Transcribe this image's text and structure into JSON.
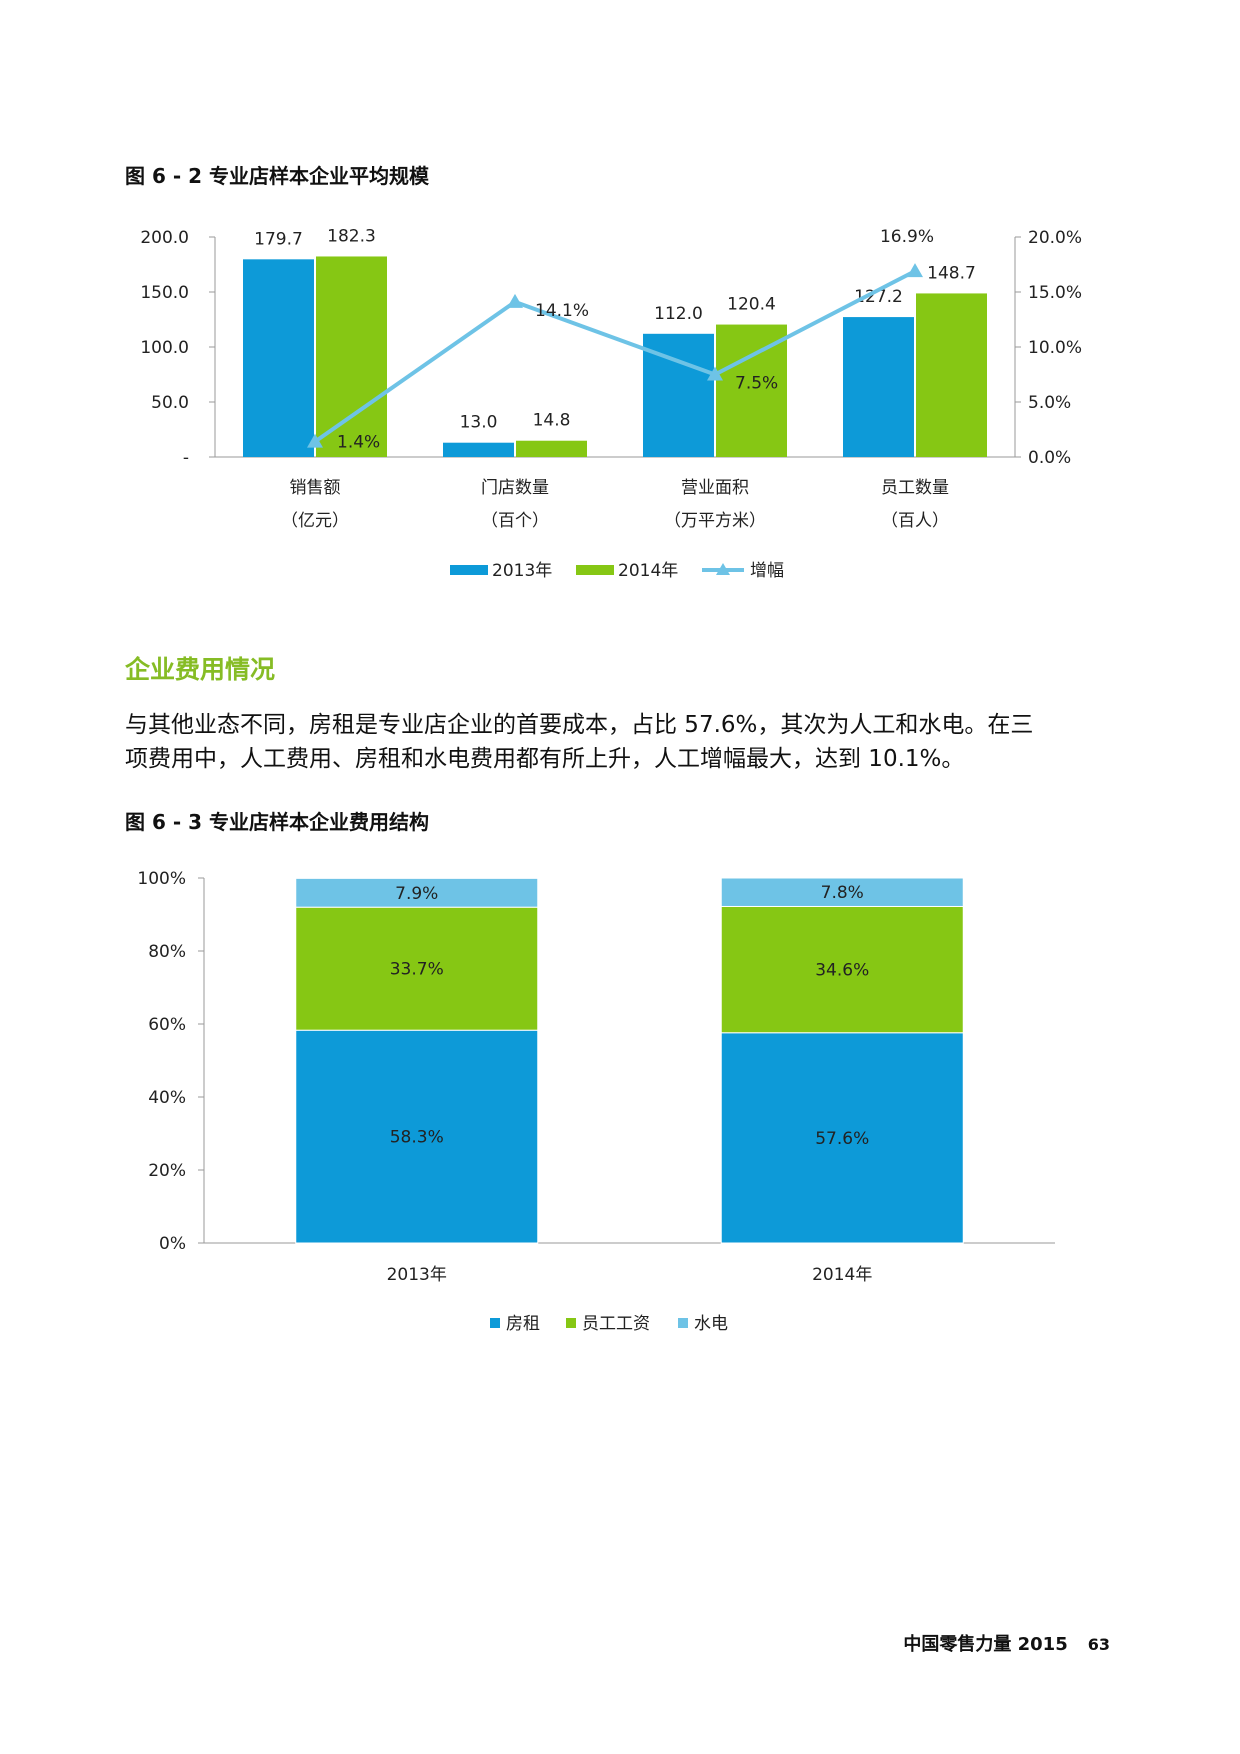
{
  "figure1": {
    "title": "图 6 - 2 专业店样本企业平均规模",
    "chart_data": {
      "type": "bar",
      "categories": [
        [
          "销售额",
          "（亿元）"
        ],
        [
          "门店数量",
          "（百个）"
        ],
        [
          "营业面积",
          "（万平方米）"
        ],
        [
          "员工数量",
          "（百人）"
        ]
      ],
      "series": [
        {
          "name": "2013年",
          "type": "bar",
          "axis": "left",
          "color": "#0d9ad8",
          "values": [
            179.7,
            13.0,
            112.0,
            127.2
          ],
          "labels": [
            "179.7",
            "13.0",
            "112.0",
            "127.2"
          ]
        },
        {
          "name": "2014年",
          "type": "bar",
          "axis": "left",
          "color": "#86c714",
          "values": [
            182.3,
            14.8,
            120.4,
            148.7
          ],
          "labels": [
            "182.3",
            "14.8",
            "120.4",
            "148.7"
          ]
        },
        {
          "name": "增幅",
          "type": "line",
          "axis": "right",
          "color": "#6ec3e6",
          "values": [
            1.4,
            14.1,
            7.5,
            16.9
          ],
          "labels": [
            "1.4%",
            "14.1%",
            "7.5%",
            "16.9%"
          ]
        }
      ],
      "y_left": {
        "ylim": [
          0,
          200
        ],
        "ticks": [
          0,
          50,
          100,
          150,
          200
        ],
        "tick_labels": [
          "-",
          "50.0",
          "100.0",
          "150.0",
          "200.0"
        ]
      },
      "y_right": {
        "ylim": [
          0,
          20
        ],
        "ticks": [
          0,
          5,
          10,
          15,
          20
        ],
        "tick_labels": [
          "0.0%",
          "5.0%",
          "10.0%",
          "15.0%",
          "20.0%"
        ]
      },
      "legend_position": "bottom",
      "grid": false
    }
  },
  "section": {
    "heading": "企业费用情况",
    "paragraph_lines": [
      "与其他业态不同，房租是专业店企业的首要成本，占比 57.6%，其次为人工和水电。在三",
      "项费用中，人工费用、房租和水电费用都有所上升，人工增幅最大，达到 10.1%。"
    ]
  },
  "figure2": {
    "title": "图 6 - 3 专业店样本企业费用结构",
    "chart_data": {
      "type": "bar",
      "stacked": true,
      "categories": [
        "2013年",
        "2014年"
      ],
      "series": [
        {
          "name": "房租",
          "color": "#0d9ad8",
          "values": [
            58.3,
            57.6
          ],
          "labels": [
            "58.3%",
            "57.6%"
          ]
        },
        {
          "name": "员工工资",
          "color": "#86c714",
          "values": [
            33.7,
            34.6
          ],
          "labels": [
            "33.7%",
            "34.6%"
          ]
        },
        {
          "name": "水电",
          "color": "#6ec3e6",
          "values": [
            7.9,
            7.8
          ],
          "labels": [
            "7.9%",
            "7.8%"
          ]
        }
      ],
      "ylim": [
        0,
        100
      ],
      "ticks": [
        0,
        20,
        40,
        60,
        80,
        100
      ],
      "tick_labels": [
        "0%",
        "20%",
        "40%",
        "60%",
        "80%",
        "100%"
      ],
      "legend_position": "bottom",
      "grid": false
    }
  },
  "footer": {
    "publication": "中国零售力量 2015",
    "page_number": "63"
  }
}
